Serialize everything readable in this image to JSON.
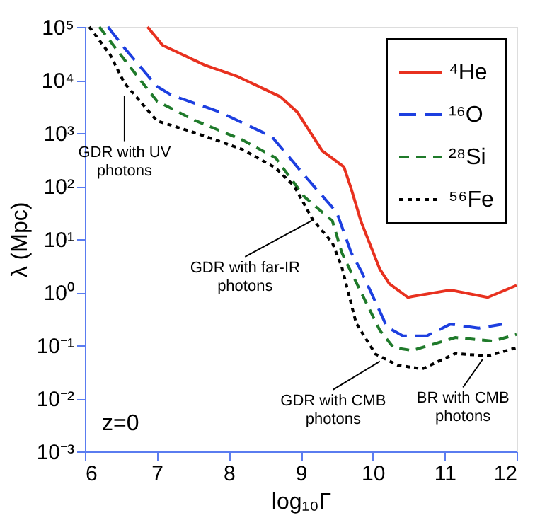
{
  "chart_data": {
    "type": "line",
    "xlabel": "log₁₀Γ",
    "ylabel": "λ (Mpc)",
    "log": true,
    "xlim": [
      6,
      12
    ],
    "xticks": [
      6,
      7,
      8,
      9,
      10,
      11,
      12
    ],
    "ylim": [
      0.001,
      100000
    ],
    "yticks": [
      {
        "value": 0.001,
        "label": "10⁻³"
      },
      {
        "value": 0.01,
        "label": "10⁻²"
      },
      {
        "value": 0.1,
        "label": "10⁻¹"
      },
      {
        "value": 1,
        "label": "10⁰"
      },
      {
        "value": 10,
        "label": "10¹"
      },
      {
        "value": 100,
        "label": "10²"
      },
      {
        "value": 1000,
        "label": "10³"
      },
      {
        "value": 10000,
        "label": "10⁴"
      },
      {
        "value": 100000,
        "label": "10⁵"
      }
    ],
    "grid": false,
    "legend": "top right",
    "marker": "none",
    "series": [
      {
        "name": "⁴He",
        "color": "#e8311f",
        "line_style": "solid",
        "x": [
          6.87,
          7.08,
          7.67,
          8.13,
          8.72,
          8.95,
          9.3,
          9.6,
          9.7,
          9.84,
          10.1,
          10.23,
          10.49,
          10.55,
          11.08,
          11.6,
          12
        ],
        "values": [
          100000,
          45000,
          19000,
          11500,
          4800,
          2500,
          460,
          230,
          90,
          21,
          2.7,
          1.45,
          0.8,
          0.83,
          1.1,
          0.8,
          1.35
        ]
      },
      {
        "name": "¹⁶O",
        "color": "#1d3fe0",
        "line_style": "dashed",
        "x": [
          6.32,
          6.55,
          7.0,
          7.2,
          7.87,
          8.6,
          9.05,
          9.5,
          9.7,
          9.84,
          10.2,
          10.42,
          10.75,
          11.08,
          11.47,
          11.8
        ],
        "values": [
          100000,
          40000,
          7600,
          5200,
          2500,
          850,
          160,
          32,
          5.6,
          2.5,
          0.22,
          0.15,
          0.15,
          0.25,
          0.21,
          0.25
        ]
      },
      {
        "name": "²⁸Si",
        "color": "#1f7a2a",
        "line_style": "dashed",
        "x": [
          6.2,
          6.55,
          7.0,
          7.54,
          8.19,
          8.65,
          9.05,
          9.44,
          9.57,
          9.64,
          10.1,
          10.29,
          10.55,
          11.15,
          11.67,
          12
        ],
        "values": [
          100000,
          24000,
          4000,
          1700,
          740,
          340,
          63,
          22,
          5.6,
          3.5,
          0.19,
          0.09,
          0.08,
          0.14,
          0.12,
          0.16
        ]
      },
      {
        "name": "⁵⁶Fe",
        "color": "#000000",
        "line_style": "dotted",
        "x": [
          6.06,
          6.35,
          6.55,
          7.0,
          7.54,
          8.19,
          8.65,
          8.91,
          9.17,
          9.44,
          9.57,
          9.77,
          10.04,
          10.35,
          10.69,
          11.15,
          11.6,
          12
        ],
        "values": [
          100000,
          30000,
          8700,
          1700,
          1000,
          490,
          220,
          100,
          23,
          8.5,
          3,
          0.26,
          0.068,
          0.042,
          0.036,
          0.07,
          0.063,
          0.09
        ]
      }
    ],
    "annotations": [
      {
        "text": "GDR with UV\nphotons",
        "x": 6.55,
        "y": 5000
      },
      {
        "text": "GDR with far-IR\nphotons",
        "x": 9.17,
        "y": 23
      },
      {
        "text": "GDR with CMB\nphotons",
        "x": 10.1,
        "y": 0.05
      },
      {
        "text": "BR with CMB\nphotons",
        "x": 11.53,
        "y": 0.055
      },
      "z=0"
    ]
  }
}
